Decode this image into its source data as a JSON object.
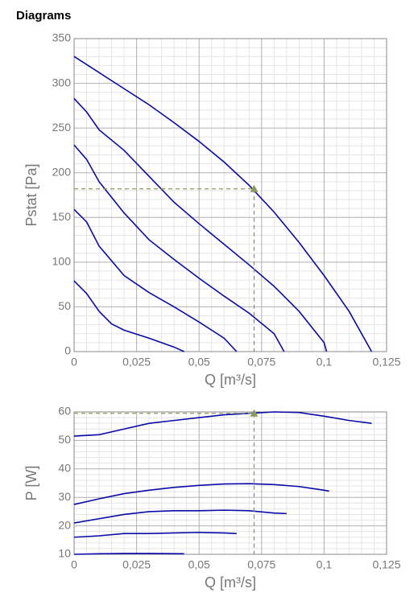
{
  "heading": "Diagrams",
  "chart_data": [
    {
      "type": "line",
      "xlabel": "Q [m³/s]",
      "ylabel": "Pstat [Pa]",
      "xlim": [
        0,
        0.125
      ],
      "xticks": [
        0,
        {
          "value": 0.025,
          "label": "0,025"
        },
        {
          "value": 0.05,
          "label": "0,05"
        },
        {
          "value": 0.075,
          "label": "0,075"
        },
        {
          "value": 0.1,
          "label": "0,1"
        },
        {
          "value": 0.125,
          "label": "0,125"
        }
      ],
      "ylim": [
        0,
        350
      ],
      "yticks": [
        0,
        50,
        100,
        150,
        200,
        250,
        300,
        350
      ],
      "grid": true,
      "minor_grid": 5,
      "series": [
        {
          "color": "#0a0aa8",
          "x": [
            0,
            0.01,
            0.02,
            0.03,
            0.04,
            0.05,
            0.06,
            0.07,
            0.08,
            0.09,
            0.1,
            0.11,
            0.119
          ],
          "values": [
            330,
            312,
            294,
            276,
            256,
            235,
            212,
            186,
            156,
            122,
            85,
            45,
            0
          ]
        },
        {
          "color": "#0a0aa8",
          "x": [
            0,
            0.005,
            0.01,
            0.02,
            0.03,
            0.04,
            0.05,
            0.06,
            0.07,
            0.08,
            0.09,
            0.1,
            0.101
          ],
          "values": [
            283,
            268,
            248,
            225,
            196,
            167,
            143,
            120,
            97,
            73,
            45,
            10,
            0
          ]
        },
        {
          "color": "#0a0aa8",
          "x": [
            0,
            0.005,
            0.01,
            0.02,
            0.03,
            0.04,
            0.05,
            0.06,
            0.07,
            0.08,
            0.084
          ],
          "values": [
            231,
            215,
            190,
            155,
            125,
            103,
            82,
            62,
            43,
            20,
            0
          ]
        },
        {
          "color": "#0a0aa8",
          "x": [
            0,
            0.005,
            0.01,
            0.02,
            0.03,
            0.04,
            0.05,
            0.06,
            0.065
          ],
          "values": [
            159,
            145,
            118,
            85,
            66,
            50,
            33,
            15,
            0
          ]
        },
        {
          "color": "#0a0aa8",
          "x": [
            0,
            0.005,
            0.01,
            0.015,
            0.02,
            0.03,
            0.04,
            0.044
          ],
          "values": [
            79,
            65,
            45,
            31,
            24,
            15,
            5,
            0
          ]
        }
      ],
      "marker": {
        "x": 0.072,
        "y": 182,
        "color": "#8d9a5e"
      }
    },
    {
      "type": "line",
      "xlabel": "Q [m³/s]",
      "ylabel": "P [W]",
      "xlim": [
        0,
        0.125
      ],
      "xticks": [
        0,
        {
          "value": 0.025,
          "label": "0,025"
        },
        {
          "value": 0.05,
          "label": "0,05"
        },
        {
          "value": 0.075,
          "label": "0,075"
        },
        {
          "value": 0.1,
          "label": "0,1"
        },
        {
          "value": 0.125,
          "label": "0,125"
        }
      ],
      "ylim": [
        10,
        60
      ],
      "yticks": [
        10,
        20,
        30,
        40,
        50,
        60
      ],
      "grid": true,
      "minor_grid": 5,
      "series": [
        {
          "color": "#0a0aa8",
          "x": [
            0,
            0.01,
            0.02,
            0.03,
            0.04,
            0.05,
            0.06,
            0.07,
            0.08,
            0.09,
            0.1,
            0.11,
            0.119
          ],
          "values": [
            51.5,
            52,
            54,
            56,
            57,
            58,
            59,
            59.5,
            60,
            59.8,
            58.5,
            57,
            56
          ]
        },
        {
          "color": "#0a0aa8",
          "x": [
            0,
            0.01,
            0.02,
            0.03,
            0.04,
            0.05,
            0.06,
            0.07,
            0.08,
            0.09,
            0.1,
            0.102
          ],
          "values": [
            27.5,
            29.5,
            31.3,
            32.5,
            33.5,
            34.2,
            34.7,
            34.8,
            34.5,
            33.8,
            32.5,
            32.2
          ]
        },
        {
          "color": "#0a0aa8",
          "x": [
            0,
            0.01,
            0.02,
            0.03,
            0.04,
            0.05,
            0.06,
            0.07,
            0.08,
            0.085
          ],
          "values": [
            21,
            22.5,
            24,
            25,
            25.3,
            25.3,
            25.5,
            25.3,
            24.5,
            24.3
          ]
        },
        {
          "color": "#0a0aa8",
          "x": [
            0,
            0.01,
            0.02,
            0.03,
            0.04,
            0.05,
            0.06,
            0.065
          ],
          "values": [
            16,
            16.5,
            17.3,
            17.3,
            17.5,
            17.7,
            17.5,
            17.3
          ]
        },
        {
          "color": "#0a0aa8",
          "x": [
            0,
            0.01,
            0.02,
            0.03,
            0.044
          ],
          "values": [
            10,
            10.2,
            10.3,
            10.3,
            10.2
          ]
        }
      ],
      "marker": {
        "x": 0.072,
        "y": 59.5,
        "color": "#8d9a5e"
      }
    }
  ]
}
